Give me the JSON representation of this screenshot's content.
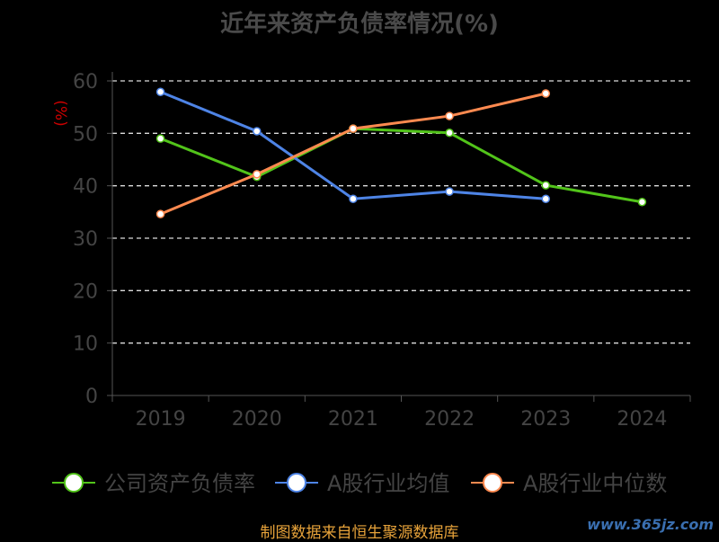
{
  "chart_data": {
    "type": "line",
    "title": "近年来资产负债率情况(%)",
    "ylabel": "(%)",
    "xlabel": "",
    "categories": [
      "2019",
      "2020",
      "2021",
      "2022",
      "2023",
      "2024"
    ],
    "ylim": [
      0,
      60
    ],
    "yticks": [
      0,
      10,
      20,
      30,
      40,
      50,
      60
    ],
    "grid": true,
    "legend_position": "bottom",
    "series": [
      {
        "name": "公司资产负债率",
        "color": "#52c41a",
        "values": [
          49.0,
          41.7,
          50.9,
          50.1,
          40.1,
          36.9
        ]
      },
      {
        "name": "A股行业均值",
        "color": "#4e84e6",
        "values": [
          57.9,
          50.4,
          37.5,
          38.9,
          37.5,
          null
        ]
      },
      {
        "name": "A股行业中位数",
        "color": "#ff8a50",
        "values": [
          34.6,
          42.2,
          50.9,
          53.3,
          57.6,
          null
        ]
      }
    ]
  },
  "footer": "制图数据来自恒生聚源数据库",
  "watermark": "www.365jz.com"
}
